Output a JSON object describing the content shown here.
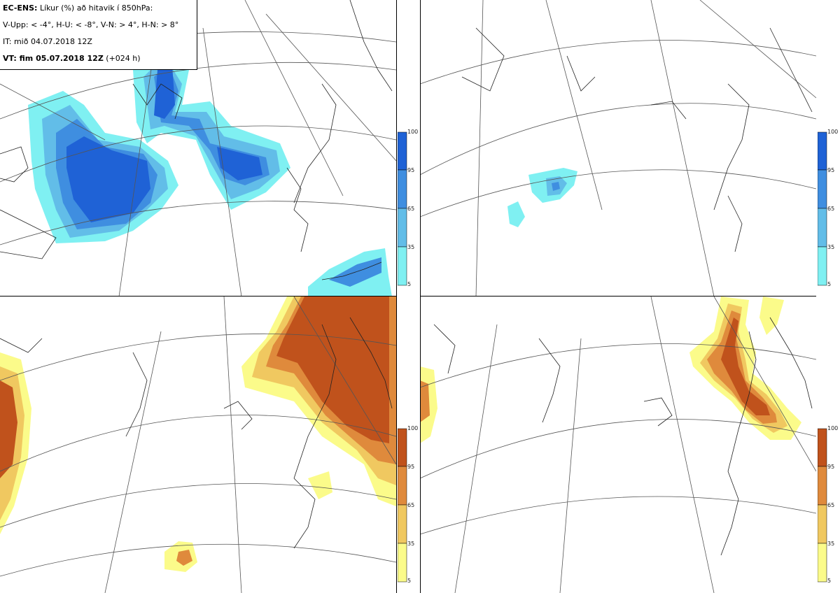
{
  "legend": {
    "model_label": "EC-ENS:",
    "title_text": "Líkur (%) að hitavik í 850hPa:",
    "thresholds": "V-Upp: < -4°, H-U: < -8°, V-N: > 4°, H-N: > 8°",
    "initial_time": "IT: mið 04.07.2018 12Z",
    "valid_label": "VT: fim 05.07.2018 12Z",
    "lead_time": "(+024 h)"
  },
  "colorbars": {
    "blue": {
      "ticks": [
        "100",
        "95",
        "65",
        "35",
        "5"
      ],
      "colors": [
        "#1f62d6",
        "#3f8ee0",
        "#62bde8",
        "#7ff0f2"
      ]
    },
    "orange": {
      "ticks": [
        "100",
        "95",
        "65",
        "35",
        "5"
      ],
      "colors": [
        "#c0521c",
        "#df8a3c",
        "#f0c860",
        "#fbfb8a"
      ]
    }
  },
  "panels": [
    {
      "name": "panel-cold-minus4",
      "scheme": "blue"
    },
    {
      "name": "panel-cold-minus8",
      "scheme": "blue"
    },
    {
      "name": "panel-warm-plus4",
      "scheme": "orange"
    },
    {
      "name": "panel-warm-plus8",
      "scheme": "orange"
    }
  ]
}
